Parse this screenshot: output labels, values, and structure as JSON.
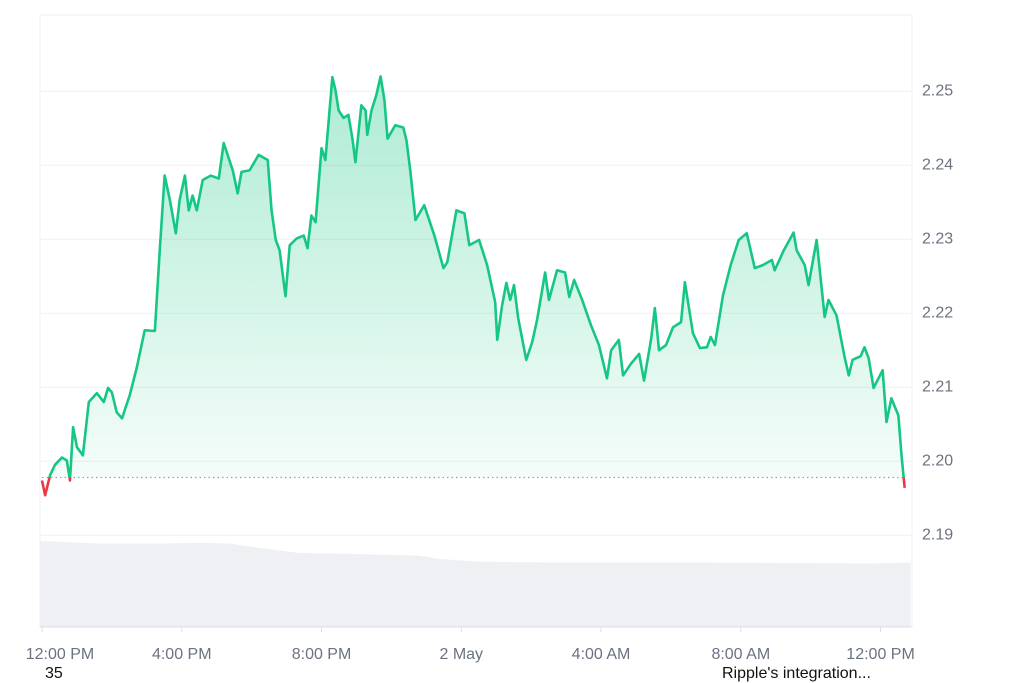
{
  "chart_data": {
    "type": "line",
    "xlim": [
      0,
      24.9
    ],
    "ylim": [
      2.1776,
      2.2603
    ],
    "xticks": [
      {
        "value": 0,
        "label": "12:00 PM"
      },
      {
        "value": 4,
        "label": "4:00 PM"
      },
      {
        "value": 8,
        "label": "8:00 PM"
      },
      {
        "value": 12,
        "label": "2 May"
      },
      {
        "value": 16,
        "label": "4:00 AM"
      },
      {
        "value": 20,
        "label": "8:00 AM"
      },
      {
        "value": 24,
        "label": "12:00 PM"
      }
    ],
    "yticks": [
      2.19,
      {
        "value": 2.2,
        "label": "2.20"
      },
      2.21,
      2.22,
      2.23,
      2.24,
      2.25
    ],
    "grid": true,
    "baseline": 2.1978,
    "series": [
      {
        "color": "#16c784",
        "down_color": "#ea3943",
        "x": [
          0,
          0.09,
          0.23,
          0.37,
          0.57,
          0.71,
          0.8,
          0.89,
          1.0,
          1.17,
          1.34,
          1.57,
          1.77,
          1.89,
          2.0,
          2.14,
          2.29,
          2.51,
          2.71,
          2.94,
          3.23,
          3.37,
          3.51,
          3.66,
          3.83,
          3.94,
          4.09,
          4.2,
          4.31,
          4.43,
          4.6,
          4.83,
          5.06,
          5.2,
          5.46,
          5.6,
          5.71,
          5.94,
          6.2,
          6.46,
          6.57,
          6.69,
          6.8,
          6.97,
          7.09,
          7.29,
          7.49,
          7.6,
          7.71,
          7.83,
          8.0,
          8.11,
          8.23,
          8.31,
          8.4,
          8.49,
          8.63,
          8.77,
          8.89,
          8.97,
          9.14,
          9.26,
          9.31,
          9.43,
          9.57,
          9.69,
          9.8,
          9.89,
          10.11,
          10.34,
          10.43,
          10.54,
          10.69,
          10.94,
          11.23,
          11.49,
          11.6,
          11.86,
          12.09,
          12.23,
          12.51,
          12.74,
          12.97,
          13.03,
          13.17,
          13.29,
          13.4,
          13.51,
          13.63,
          13.86,
          14.03,
          14.17,
          14.4,
          14.51,
          14.74,
          14.97,
          15.09,
          15.23,
          15.46,
          15.71,
          15.94,
          16.17,
          16.29,
          16.51,
          16.63,
          16.86,
          17.09,
          17.23,
          17.43,
          17.54,
          17.66,
          17.86,
          18.06,
          18.29,
          18.4,
          18.63,
          18.83,
          19.03,
          19.14,
          19.26,
          19.49,
          19.71,
          19.94,
          20.17,
          20.4,
          20.63,
          20.89,
          20.97,
          21.23,
          21.51,
          21.6,
          21.83,
          21.94,
          22.17,
          22.4,
          22.51,
          22.74,
          22.97,
          23.09,
          23.2,
          23.43,
          23.54,
          23.66,
          23.8,
          24.06,
          24.17,
          24.31,
          24.51,
          24.6,
          24.69
        ],
        "values": [
          2.1974,
          2.1954,
          2.1981,
          2.1995,
          2.2005,
          2.2001,
          2.1974,
          2.2046,
          2.2019,
          2.2008,
          2.208,
          2.2092,
          2.208,
          2.2099,
          2.2093,
          2.2066,
          2.2058,
          2.2089,
          2.2126,
          2.2177,
          2.2176,
          2.2285,
          2.2386,
          2.2353,
          2.2308,
          2.2353,
          2.2386,
          2.2339,
          2.2359,
          2.2339,
          2.238,
          2.2386,
          2.2382,
          2.243,
          2.2393,
          2.2362,
          2.2391,
          2.2393,
          2.2414,
          2.2407,
          2.2339,
          2.2299,
          2.2285,
          2.2223,
          2.2292,
          2.2301,
          2.2305,
          2.2288,
          2.2332,
          2.2323,
          2.2423,
          2.2407,
          2.2474,
          2.2519,
          2.2501,
          2.2474,
          2.2464,
          2.2468,
          2.2434,
          2.2404,
          2.2481,
          2.2474,
          2.2441,
          2.2474,
          2.2495,
          2.252,
          2.2488,
          2.2436,
          2.2454,
          2.2451,
          2.2434,
          2.2393,
          2.2326,
          2.2346,
          2.2305,
          2.2261,
          2.2269,
          2.2339,
          2.2335,
          2.2292,
          2.2299,
          2.2265,
          2.2215,
          2.2164,
          2.2211,
          2.2241,
          2.2218,
          2.2238,
          2.2193,
          2.2137,
          2.2161,
          2.2191,
          2.2255,
          2.2218,
          2.2258,
          2.2255,
          2.2222,
          2.2245,
          2.2218,
          2.2184,
          2.2157,
          2.2112,
          2.215,
          2.2164,
          2.2116,
          2.2132,
          2.2145,
          2.2109,
          2.2164,
          2.2207,
          2.215,
          2.2157,
          2.2181,
          2.2188,
          2.2242,
          2.2173,
          2.2153,
          2.2154,
          2.2168,
          2.2157,
          2.2224,
          2.2265,
          2.2299,
          2.2308,
          2.2261,
          2.2265,
          2.2272,
          2.2258,
          2.2285,
          2.2309,
          2.2285,
          2.2265,
          2.2238,
          2.2299,
          2.2195,
          2.2218,
          2.2197,
          2.2141,
          2.2116,
          2.2137,
          2.2142,
          2.2154,
          2.2139,
          2.2099,
          2.2123,
          2.2053,
          2.2085,
          2.2062,
          2.2008,
          2.1964
        ]
      }
    ],
    "volume": {
      "color": "#eef0f3",
      "ylim": [
        0,
        100
      ],
      "x": [
        -0.06,
        1.66,
        3.37,
        4.51,
        5.37,
        6.23,
        7.37,
        8.8,
        10.8,
        11.37,
        12.51,
        14.51,
        18.8,
        23.09,
        23.94,
        24.86
      ],
      "values": [
        100,
        97,
        97,
        98,
        97,
        92,
        86,
        85,
        83,
        79,
        76,
        75,
        75,
        74,
        74,
        75
      ]
    },
    "annotations": [
      "35",
      "Ripple's integration..."
    ]
  }
}
